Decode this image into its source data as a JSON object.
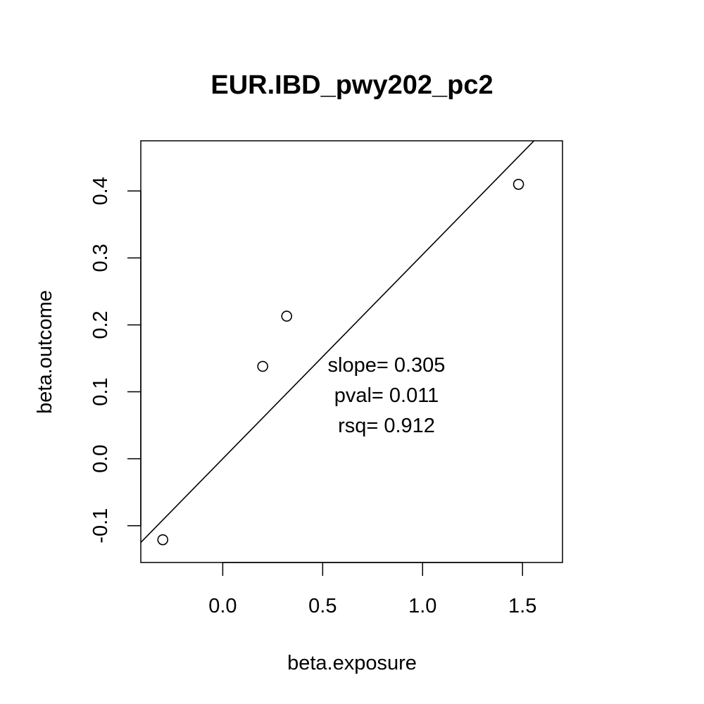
{
  "chart_data": {
    "type": "scatter",
    "title": "EUR.IBD_pwy202_pc2",
    "xlabel": "beta.exposure",
    "ylabel": "beta.outcome",
    "xlim": [
      -0.41,
      1.7
    ],
    "ylim": [
      -0.155,
      0.475
    ],
    "x_ticks": [
      0.0,
      0.5,
      1.0,
      1.5
    ],
    "x_tick_labels": [
      "0.0",
      "0.5",
      "1.0",
      "1.5"
    ],
    "y_ticks": [
      -0.1,
      0.0,
      0.1,
      0.2,
      0.3,
      0.4
    ],
    "y_tick_labels": [
      "-0.1",
      "0.0",
      "0.1",
      "0.2",
      "0.3",
      "0.4"
    ],
    "points": [
      {
        "x": -0.3,
        "y": -0.121
      },
      {
        "x": 0.2,
        "y": 0.138
      },
      {
        "x": 0.32,
        "y": 0.213
      },
      {
        "x": 1.48,
        "y": 0.41
      }
    ],
    "fit_line": {
      "slope": 0.305,
      "intercept": 0.0
    },
    "annotations": [
      "slope= 0.305",
      "pval= 0.011",
      "rsq= 0.912"
    ],
    "grid": false,
    "legend": "none"
  }
}
